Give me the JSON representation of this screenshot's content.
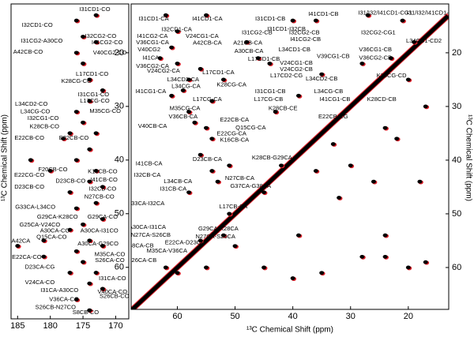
{
  "chart_data": [
    {
      "type": "scatter",
      "ylabel": "¹³C Chemical Shift (ppm)",
      "xlim": [
        186,
        168
      ],
      "ylim": [
        10.9,
        69.6
      ],
      "xticks": [
        185,
        180,
        175,
        170
      ],
      "yticks": [
        20,
        30,
        40,
        50,
        60
      ],
      "color": "#000000",
      "overlay_color": "#e0202a",
      "points": {
        "x": [
          173,
          176,
          175,
          173,
          176,
          175,
          174,
          172,
          174,
          176,
          175,
          177,
          178,
          174,
          176,
          173,
          174,
          172,
          177,
          173,
          176,
          172,
          175,
          177,
          174,
          172,
          176,
          175,
          173,
          177,
          174,
          172,
          176,
          174,
          181,
          181,
          180,
          183,
          185,
          173
        ],
        "y": [
          13,
          14,
          17,
          18,
          20,
          22,
          25,
          27,
          29,
          31,
          33,
          35,
          36,
          38,
          40,
          42,
          44,
          45,
          46,
          48,
          49,
          51,
          52,
          53,
          55,
          56,
          57,
          59,
          61,
          61,
          63,
          64,
          66,
          68,
          55,
          58,
          42,
          40,
          56,
          35
        ]
      },
      "annotations": [
        {
          "text": "I31CD1-CO",
          "x": 173.2,
          "y": 11.9
        },
        {
          "text": "I32CD1-CO",
          "x": 182.0,
          "y": 14.9
        },
        {
          "text": "I31CG2-A30CO",
          "x": 181.3,
          "y": 17.8
        },
        {
          "text": "I32CG2-CO",
          "x": 172.3,
          "y": 16.9
        },
        {
          "text": "I41CG2-CO",
          "x": 171.3,
          "y": 18.1
        },
        {
          "text": "A42CB-CO",
          "x": 183.4,
          "y": 19.9
        },
        {
          "text": "V40CG2-CO",
          "x": 170.9,
          "y": 20.0
        },
        {
          "text": "L17CD1-CO",
          "x": 173.6,
          "y": 24.0
        },
        {
          "text": "K28CG-CO",
          "x": 176.0,
          "y": 25.3
        },
        {
          "text": "L34CD2-CO",
          "x": 182.9,
          "y": 29.6
        },
        {
          "text": "L34CG-CO",
          "x": 182.3,
          "y": 31.0
        },
        {
          "text": "I31CG1-CO",
          "x": 173.4,
          "y": 27.8
        },
        {
          "text": "I32CG1-CO",
          "x": 181.1,
          "y": 32.2
        },
        {
          "text": "L17CG-CO",
          "x": 173.2,
          "y": 29.0
        },
        {
          "text": "K28CB-CO",
          "x": 180.9,
          "y": 33.8
        },
        {
          "text": "M35CG-CO",
          "x": 171.6,
          "y": 30.9
        },
        {
          "text": "E22CB-CO",
          "x": 183.2,
          "y": 35.9
        },
        {
          "text": "E22CB-CO",
          "x": 176.4,
          "y": 35.9
        },
        {
          "text": "E22CG-CO",
          "x": 183.2,
          "y": 42.8
        },
        {
          "text": "F20CB-CO",
          "x": 179.6,
          "y": 41.8
        },
        {
          "text": "D23CB-CO",
          "x": 176.9,
          "y": 43.9
        },
        {
          "text": "D23CB-CO",
          "x": 183.2,
          "y": 45.0
        },
        {
          "text": "K16CB-CO",
          "x": 172.0,
          "y": 42.2
        },
        {
          "text": "I41CB-CO",
          "x": 171.8,
          "y": 43.7
        },
        {
          "text": "I32CB-CO",
          "x": 172.0,
          "y": 45.4
        },
        {
          "text": "N27CB-CO",
          "x": 172.5,
          "y": 46.9
        },
        {
          "text": "G33CA-L34CO",
          "x": 182.3,
          "y": 48.8
        },
        {
          "text": "G29CA-K28CO",
          "x": 178.9,
          "y": 50.6
        },
        {
          "text": "G29CA-CO",
          "x": 172.0,
          "y": 50.6
        },
        {
          "text": "G25CA-V24CO",
          "x": 181.6,
          "y": 52.1
        },
        {
          "text": "A30CA-CO",
          "x": 179.3,
          "y": 53.2
        },
        {
          "text": "A30CA-I31CO",
          "x": 172.5,
          "y": 53.2
        },
        {
          "text": "Q15CA-CO",
          "x": 179.8,
          "y": 54.4
        },
        {
          "text": "A42CA",
          "x": 184.5,
          "y": 55.1
        },
        {
          "text": "A30CA-G29CO",
          "x": 172.7,
          "y": 55.6
        },
        {
          "text": "E22CA-CO",
          "x": 183.6,
          "y": 58.1
        },
        {
          "text": "M35CA-CO",
          "x": 170.9,
          "y": 57.6
        },
        {
          "text": "S26CA-CO",
          "x": 170.9,
          "y": 58.7
        },
        {
          "text": "D23CA-CG",
          "x": 181.6,
          "y": 60.0
        },
        {
          "text": "I31CA-CO",
          "x": 170.5,
          "y": 62.1
        },
        {
          "text": "V24CA-CO",
          "x": 181.6,
          "y": 62.8
        },
        {
          "text": "I31CA-A30CO",
          "x": 178.6,
          "y": 64.3
        },
        {
          "text": "V40CA-CO",
          "x": 170.5,
          "y": 64.6
        },
        {
          "text": "V36CA-CO",
          "x": 177.9,
          "y": 66.0
        },
        {
          "text": "S26CB-CO",
          "x": 170.2,
          "y": 65.4
        },
        {
          "text": "S26CB-N27CO",
          "x": 179.2,
          "y": 67.5
        },
        {
          "text": "S8CB-CO",
          "x": 174.6,
          "y": 68.4
        }
      ]
    },
    {
      "type": "scatter",
      "xlabel": "¹³C Chemical Shift (ppm)",
      "ylabel": "¹³C Chemical Shift (ppm)",
      "xlim": [
        68,
        13
      ],
      "ylim": [
        10.9,
        67.8
      ],
      "xticks": [
        60,
        50,
        40,
        30,
        20
      ],
      "yticks": [
        20,
        30,
        40,
        50,
        60
      ],
      "color": "#000000",
      "overlay_color": "#e0202a",
      "points": {
        "x": [
          62,
          55,
          60,
          61,
          63,
          60,
          58,
          59,
          61,
          56,
          54,
          52,
          58,
          57,
          55,
          54,
          56,
          51,
          54,
          58,
          53,
          45,
          51,
          52,
          56,
          62,
          60,
          55,
          50,
          45,
          40,
          35,
          28,
          24,
          20,
          17,
          33,
          30,
          36,
          42,
          22,
          26,
          18,
          32,
          24,
          39,
          44,
          40,
          36,
          27,
          21,
          19,
          23,
          28,
          35,
          39,
          43,
          24,
          17,
          20,
          48,
          46
        ],
        "y": [
          13,
          13,
          16,
          19,
          21,
          22,
          25,
          27,
          28,
          23,
          29,
          25,
          31,
          33,
          34,
          36,
          39,
          41,
          42,
          46,
          44,
          46,
          50,
          54,
          55,
          60,
          61,
          60,
          56,
          60,
          62,
          61,
          58,
          58,
          60,
          59,
          37,
          41,
          42,
          41,
          36,
          44,
          44,
          47,
          54,
          54,
          22,
          14,
          14,
          13,
          14,
          18,
          21,
          22,
          24,
          28,
          31,
          34,
          30,
          25,
          18,
          21
        ]
      },
      "annotations": [
        {
          "text": "I31CD1-CA",
          "x": 64.1,
          "y": 13.7
        },
        {
          "text": "I41CD1-CA",
          "x": 54.8,
          "y": 13.7
        },
        {
          "text": "I32CD1-CA",
          "x": 60.1,
          "y": 15.7
        },
        {
          "text": "I41CG2-CA",
          "x": 64.3,
          "y": 16.9
        },
        {
          "text": "V24CG1-CA",
          "x": 55.7,
          "y": 16.9
        },
        {
          "text": "V36CG1-CA",
          "x": 64.3,
          "y": 18.1
        },
        {
          "text": "A42CB-CA",
          "x": 54.8,
          "y": 18.2
        },
        {
          "text": "V40CG2",
          "x": 64.9,
          "y": 19.4
        },
        {
          "text": "I41CA",
          "x": 64.6,
          "y": 21.0
        },
        {
          "text": "V36CG2-CA",
          "x": 64.3,
          "y": 22.5
        },
        {
          "text": "V24CG2-CA",
          "x": 62.4,
          "y": 23.4
        },
        {
          "text": "L17CD1-CA",
          "x": 52.9,
          "y": 23.7
        },
        {
          "text": "L34CD2-CA",
          "x": 59.0,
          "y": 25.0
        },
        {
          "text": "L34CG-CA",
          "x": 58.5,
          "y": 26.3
        },
        {
          "text": "K28CG-CA",
          "x": 50.6,
          "y": 26.0
        },
        {
          "text": "I41CG1-CA",
          "x": 64.6,
          "y": 27.2
        },
        {
          "text": "L17CG-CA",
          "x": 54.8,
          "y": 28.7
        },
        {
          "text": "M35CG-CA",
          "x": 58.7,
          "y": 30.4
        },
        {
          "text": "V36CB-CA",
          "x": 59.0,
          "y": 31.9
        },
        {
          "text": "E22CB-CA",
          "x": 50.1,
          "y": 32.5
        },
        {
          "text": "V40CB-CA",
          "x": 64.3,
          "y": 33.7
        },
        {
          "text": "Q15CG-CA",
          "x": 47.3,
          "y": 34.0
        },
        {
          "text": "E22CG-CA",
          "x": 50.6,
          "y": 35.1
        },
        {
          "text": "K16CB-CA",
          "x": 50.1,
          "y": 36.3
        },
        {
          "text": "D23CB-CA",
          "x": 54.8,
          "y": 39.9
        },
        {
          "text": "I41CB-CA",
          "x": 64.9,
          "y": 40.7
        },
        {
          "text": "I32CB-CA",
          "x": 65.2,
          "y": 42.8
        },
        {
          "text": "N27CB-CA",
          "x": 49.2,
          "y": 43.4
        },
        {
          "text": "L34CB-CA",
          "x": 59.9,
          "y": 44.0
        },
        {
          "text": "G37CA-G38CA",
          "x": 47.3,
          "y": 44.9
        },
        {
          "text": "I31CB-CA",
          "x": 60.7,
          "y": 45.4
        },
        {
          "text": "G33CA-I32CA",
          "x": 65.5,
          "y": 48.1
        },
        {
          "text": "L17CB-CA",
          "x": 50.3,
          "y": 48.7
        },
        {
          "text": "A30CA-I31CA",
          "x": 65.2,
          "y": 52.5
        },
        {
          "text": "G29CA-K28CA",
          "x": 52.9,
          "y": 52.8
        },
        {
          "text": "N27CA-S26CB",
          "x": 64.6,
          "y": 54.0
        },
        {
          "text": "N27CA-S26CA",
          "x": 53.4,
          "y": 54.3
        },
        {
          "text": "E22CA-D23CA",
          "x": 58.7,
          "y": 55.4
        },
        {
          "text": "S8CA-CB",
          "x": 66.3,
          "y": 56.0
        },
        {
          "text": "M35CA-V36CA",
          "x": 61.8,
          "y": 56.9
        },
        {
          "text": "S26CA-CB",
          "x": 66.1,
          "y": 58.7
        },
        {
          "text": "I31CD1-CB",
          "x": 43.9,
          "y": 13.7
        },
        {
          "text": "I41CD1-CB",
          "x": 34.7,
          "y": 12.8
        },
        {
          "text": "I31/I32/I41CD1-CG1",
          "x": 24.0,
          "y": 12.6
        },
        {
          "text": "I31/I32/I41CD1-CG2",
          "x": 15.6,
          "y": 12.6
        },
        {
          "text": "I31CD1-I32CB",
          "x": 41.1,
          "y": 15.6
        },
        {
          "text": "I31CG2-CB",
          "x": 46.2,
          "y": 16.3
        },
        {
          "text": "I32CG2-CB",
          "x": 38.0,
          "y": 16.3
        },
        {
          "text": "I41CG2-CB",
          "x": 37.8,
          "y": 17.5
        },
        {
          "text": "I32CG2-CG1",
          "x": 25.2,
          "y": 16.3
        },
        {
          "text": "L34CD1-CD2",
          "x": 17.3,
          "y": 17.8
        },
        {
          "text": "A21CB-CA",
          "x": 47.8,
          "y": 18.2
        },
        {
          "text": "A30CB-CA",
          "x": 47.6,
          "y": 19.7
        },
        {
          "text": "L34CD1-CB",
          "x": 39.7,
          "y": 19.4
        },
        {
          "text": "V36CG1-CB",
          "x": 25.7,
          "y": 19.4
        },
        {
          "text": "V39CG1-CB",
          "x": 33.0,
          "y": 20.7
        },
        {
          "text": "V36CG2-CB",
          "x": 25.7,
          "y": 21.0
        },
        {
          "text": "L17CD1-CB",
          "x": 45.0,
          "y": 21.2
        },
        {
          "text": "V24CG1-CB",
          "x": 39.4,
          "y": 21.9
        },
        {
          "text": "V24CG2-CB",
          "x": 39.4,
          "y": 23.1
        },
        {
          "text": "L17CD2-CG",
          "x": 41.1,
          "y": 24.3
        },
        {
          "text": "K28CG-CD",
          "x": 22.9,
          "y": 24.3
        },
        {
          "text": "L34CD2-CB",
          "x": 35.0,
          "y": 24.9
        },
        {
          "text": "I31CG1-CB",
          "x": 43.9,
          "y": 27.2
        },
        {
          "text": "L34CG-CB",
          "x": 33.8,
          "y": 27.2
        },
        {
          "text": "L17CG-CB",
          "x": 44.2,
          "y": 28.7
        },
        {
          "text": "I41CG1-CB",
          "x": 32.7,
          "y": 28.7
        },
        {
          "text": "K28CD-CB",
          "x": 24.6,
          "y": 28.7
        },
        {
          "text": "K28CB-CE",
          "x": 41.7,
          "y": 30.4
        },
        {
          "text": "E22CB-CG",
          "x": 33.0,
          "y": 31.9
        },
        {
          "text": "K28CB-G29CA",
          "x": 43.6,
          "y": 39.6
        }
      ]
    }
  ]
}
